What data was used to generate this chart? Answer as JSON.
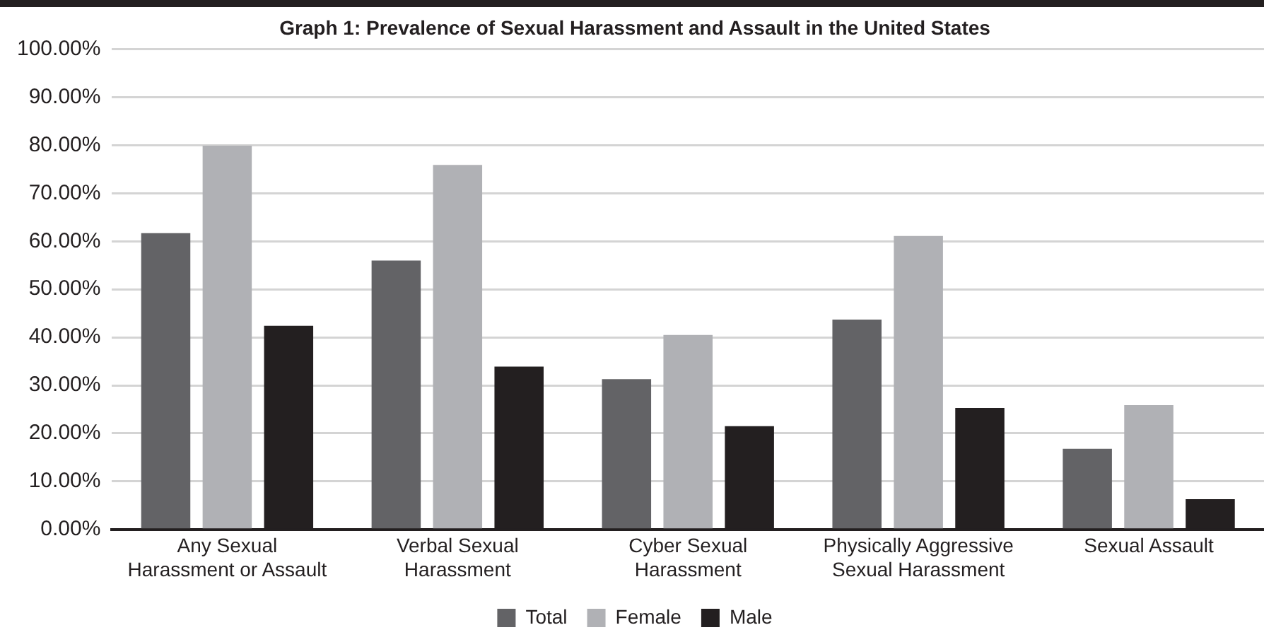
{
  "chart_data": {
    "type": "bar",
    "title": "Graph 1: Prevalence of Sexual Harassment and Assault in the United States",
    "categories": [
      "Any Sexual Harassment or Assault",
      "Verbal Sexual Harassment",
      "Cyber Sexual Harassment",
      "Physically Aggressive Sexual Harassment",
      "Sexual Assault"
    ],
    "series": [
      {
        "name": "Total",
        "color": "#636366",
        "values": [
          61.7,
          56.0,
          31.3,
          43.7,
          16.8
        ]
      },
      {
        "name": "Female",
        "color": "#b0b1b5",
        "values": [
          79.9,
          75.9,
          40.5,
          61.1,
          25.9
        ]
      },
      {
        "name": "Male",
        "color": "#231f20",
        "values": [
          42.4,
          33.9,
          21.5,
          25.3,
          6.3
        ]
      }
    ],
    "ylim": [
      0,
      100
    ],
    "yticks": [
      {
        "value": 0,
        "label": "0.00%"
      },
      {
        "value": 10,
        "label": "10.00%"
      },
      {
        "value": 20,
        "label": "20.00%"
      },
      {
        "value": 30,
        "label": "30.00%"
      },
      {
        "value": 40,
        "label": "40.00%"
      },
      {
        "value": 50,
        "label": "50.00%"
      },
      {
        "value": 60,
        "label": "60.00%"
      },
      {
        "value": 70,
        "label": "70.00%"
      },
      {
        "value": 80,
        "label": "80.00%"
      },
      {
        "value": 90,
        "label": "90.00%"
      },
      {
        "value": 100,
        "label": "100.00%"
      }
    ],
    "grid": "y",
    "legend": "bottom"
  }
}
